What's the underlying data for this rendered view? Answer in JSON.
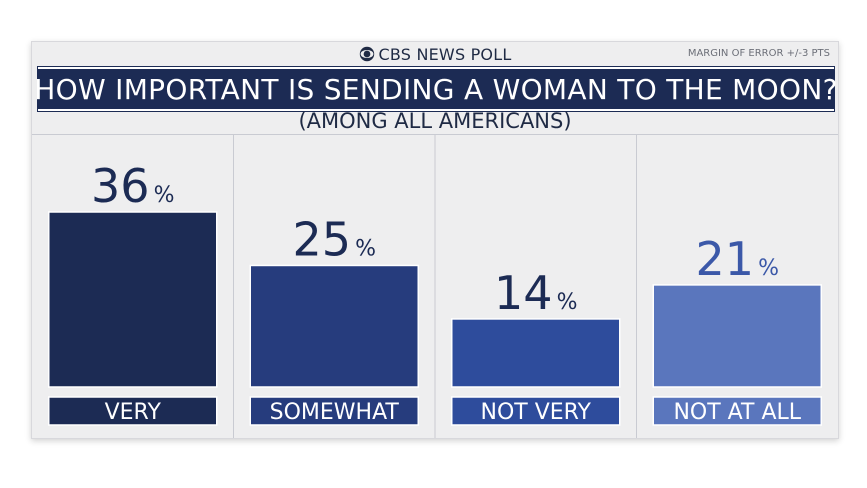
{
  "header": {
    "brand": "CBS NEWS POLL",
    "margin_of_error": "MARGIN OF ERROR +/-3 PTS"
  },
  "chart_data": {
    "type": "bar",
    "title": "HOW IMPORTANT IS SENDING A WOMAN TO THE MOON?",
    "subtitle": "(AMONG ALL AMERICANS)",
    "categories": [
      "VERY",
      "SOMEWHAT",
      "NOT VERY",
      "NOT AT ALL"
    ],
    "values": [
      36,
      25,
      14,
      21
    ],
    "value_labels": [
      "36",
      "25",
      "14",
      "21"
    ],
    "value_suffix": "%",
    "ylim": [
      0,
      36
    ],
    "grid": false,
    "legend": "none",
    "colors": [
      "#1c2b54",
      "#263c7d",
      "#2e4c9c",
      "#5a76bd"
    ],
    "number_colors": [
      "#1c2b54",
      "#1c2b54",
      "#1c2b54",
      "#3b58a8"
    ]
  }
}
